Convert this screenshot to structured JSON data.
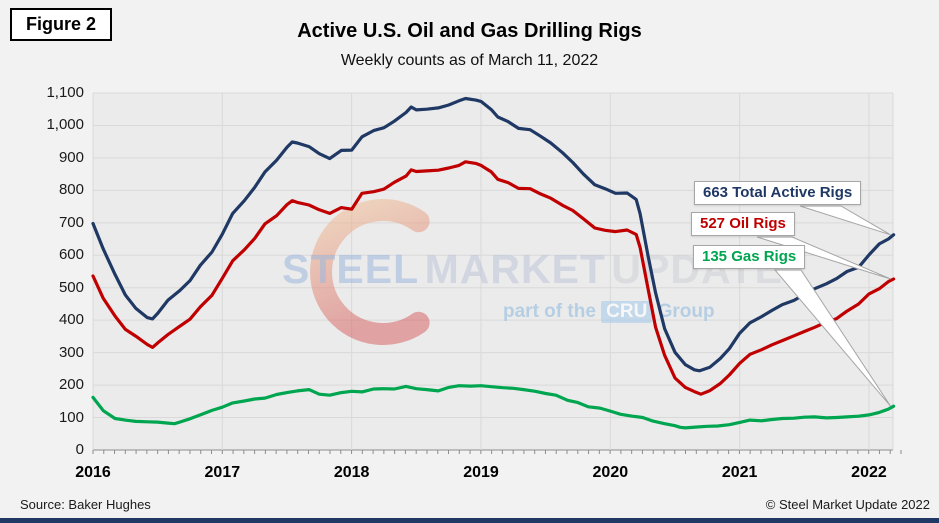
{
  "figure_label": "Figure 2",
  "footer": {
    "source": "Source: Baker Hughes",
    "copyright": "© Steel Market Update 2022"
  },
  "watermark": {
    "word1": "STEEL",
    "word2": "MARKET",
    "word3": "UPDATE",
    "sub_prefix": "part of the",
    "sub_badge": "CRU",
    "sub_suffix": "Group"
  },
  "colors": {
    "total": "#1f3864",
    "oil": "#c00000",
    "gas": "#00a550",
    "plot_bg": "#ebebeb",
    "gridline": "#d9d9d9",
    "axis": "#8c8c8c",
    "page_bg": "#f2f2f2",
    "callout_border": "#a6a6a6",
    "footer_bar": "#1f3864"
  },
  "chart_data": {
    "type": "line",
    "title": "Active U.S. Oil and Gas Drilling Rigs",
    "subtitle": "Weekly counts as of March 11, 2022",
    "xlabel": "",
    "ylabel": "",
    "grid": true,
    "legend_position": "callouts-right",
    "x_axis": {
      "range": [
        2016.0,
        2022.19
      ],
      "tick_values": [
        2016,
        2017,
        2018,
        2019,
        2020,
        2021,
        2022
      ],
      "tick_labels": [
        "2016",
        "2017",
        "2018",
        "2019",
        "2020",
        "2021",
        "2022"
      ],
      "minor_tick_interval_years": 0.0833
    },
    "y_axis": {
      "range": [
        0,
        1100
      ],
      "tick_values": [
        0,
        100,
        200,
        300,
        400,
        500,
        600,
        700,
        800,
        900,
        1000,
        1100
      ],
      "tick_labels": [
        "0",
        "100",
        "200",
        "300",
        "400",
        "500",
        "600",
        "700",
        "800",
        "900",
        "1,000",
        "1,100"
      ]
    },
    "annotations": [
      {
        "text": "663 Total Active Rigs",
        "color": "#1f3864",
        "value": 663
      },
      {
        "text": "527 Oil Rigs",
        "color": "#c00000",
        "value": 527
      },
      {
        "text": "135 Gas Rigs",
        "color": "#00a550",
        "value": 135
      }
    ],
    "series": [
      {
        "name": "Total Active Rigs",
        "color": "#1f3864",
        "latest_value": 663,
        "points": [
          [
            2016.0,
            698
          ],
          [
            2016.08,
            619
          ],
          [
            2016.17,
            541
          ],
          [
            2016.25,
            478
          ],
          [
            2016.33,
            437
          ],
          [
            2016.42,
            408
          ],
          [
            2016.46,
            404
          ],
          [
            2016.5,
            421
          ],
          [
            2016.58,
            462
          ],
          [
            2016.67,
            491
          ],
          [
            2016.75,
            522
          ],
          [
            2016.83,
            569
          ],
          [
            2016.92,
            610
          ],
          [
            2017.0,
            665
          ],
          [
            2017.08,
            729
          ],
          [
            2017.17,
            768
          ],
          [
            2017.25,
            809
          ],
          [
            2017.33,
            857
          ],
          [
            2017.42,
            893
          ],
          [
            2017.5,
            933
          ],
          [
            2017.54,
            949
          ],
          [
            2017.58,
            946
          ],
          [
            2017.67,
            935
          ],
          [
            2017.75,
            913
          ],
          [
            2017.83,
            898
          ],
          [
            2017.92,
            923
          ],
          [
            2018.0,
            924
          ],
          [
            2018.08,
            965
          ],
          [
            2018.17,
            984
          ],
          [
            2018.25,
            993
          ],
          [
            2018.33,
            1013
          ],
          [
            2018.42,
            1040
          ],
          [
            2018.46,
            1057
          ],
          [
            2018.5,
            1048
          ],
          [
            2018.58,
            1050
          ],
          [
            2018.67,
            1054
          ],
          [
            2018.75,
            1063
          ],
          [
            2018.83,
            1076
          ],
          [
            2018.88,
            1083
          ],
          [
            2018.96,
            1078
          ],
          [
            2019.0,
            1074
          ],
          [
            2019.08,
            1049
          ],
          [
            2019.13,
            1026
          ],
          [
            2019.21,
            1012
          ],
          [
            2019.29,
            991
          ],
          [
            2019.38,
            987
          ],
          [
            2019.46,
            967
          ],
          [
            2019.54,
            946
          ],
          [
            2019.63,
            916
          ],
          [
            2019.71,
            886
          ],
          [
            2019.79,
            851
          ],
          [
            2019.88,
            817
          ],
          [
            2019.96,
            805
          ],
          [
            2020.04,
            791
          ],
          [
            2020.13,
            792
          ],
          [
            2020.2,
            772
          ],
          [
            2020.23,
            728
          ],
          [
            2020.29,
            602
          ],
          [
            2020.35,
            484
          ],
          [
            2020.42,
            374
          ],
          [
            2020.5,
            301
          ],
          [
            2020.58,
            263
          ],
          [
            2020.65,
            247
          ],
          [
            2020.69,
            244
          ],
          [
            2020.77,
            255
          ],
          [
            2020.85,
            282
          ],
          [
            2020.92,
            312
          ],
          [
            2021.0,
            360
          ],
          [
            2021.08,
            392
          ],
          [
            2021.17,
            411
          ],
          [
            2021.25,
            430
          ],
          [
            2021.33,
            448
          ],
          [
            2021.42,
            461
          ],
          [
            2021.5,
            479
          ],
          [
            2021.58,
            497
          ],
          [
            2021.67,
            512
          ],
          [
            2021.75,
            528
          ],
          [
            2021.83,
            550
          ],
          [
            2021.92,
            563
          ],
          [
            2022.0,
            601
          ],
          [
            2022.08,
            635
          ],
          [
            2022.15,
            650
          ],
          [
            2022.19,
            663
          ]
        ]
      },
      {
        "name": "Oil Rigs",
        "color": "#c00000",
        "latest_value": 527,
        "points": [
          [
            2016.0,
            536
          ],
          [
            2016.08,
            467
          ],
          [
            2016.17,
            413
          ],
          [
            2016.25,
            372
          ],
          [
            2016.33,
            351
          ],
          [
            2016.42,
            325
          ],
          [
            2016.46,
            316
          ],
          [
            2016.5,
            330
          ],
          [
            2016.58,
            356
          ],
          [
            2016.67,
            381
          ],
          [
            2016.75,
            403
          ],
          [
            2016.83,
            441
          ],
          [
            2016.92,
            477
          ],
          [
            2017.0,
            529
          ],
          [
            2017.08,
            583
          ],
          [
            2017.17,
            617
          ],
          [
            2017.25,
            652
          ],
          [
            2017.33,
            697
          ],
          [
            2017.42,
            722
          ],
          [
            2017.5,
            756
          ],
          [
            2017.54,
            768
          ],
          [
            2017.58,
            763
          ],
          [
            2017.67,
            755
          ],
          [
            2017.75,
            740
          ],
          [
            2017.83,
            729
          ],
          [
            2017.92,
            747
          ],
          [
            2018.0,
            742
          ],
          [
            2018.08,
            791
          ],
          [
            2018.17,
            796
          ],
          [
            2018.25,
            804
          ],
          [
            2018.33,
            825
          ],
          [
            2018.42,
            844
          ],
          [
            2018.46,
            863
          ],
          [
            2018.5,
            858
          ],
          [
            2018.58,
            860
          ],
          [
            2018.67,
            862
          ],
          [
            2018.75,
            869
          ],
          [
            2018.83,
            877
          ],
          [
            2018.88,
            888
          ],
          [
            2018.96,
            883
          ],
          [
            2019.0,
            877
          ],
          [
            2019.08,
            857
          ],
          [
            2019.13,
            834
          ],
          [
            2019.21,
            824
          ],
          [
            2019.29,
            806
          ],
          [
            2019.38,
            805
          ],
          [
            2019.46,
            789
          ],
          [
            2019.54,
            776
          ],
          [
            2019.63,
            754
          ],
          [
            2019.71,
            738
          ],
          [
            2019.79,
            713
          ],
          [
            2019.88,
            684
          ],
          [
            2019.96,
            677
          ],
          [
            2020.04,
            673
          ],
          [
            2020.13,
            678
          ],
          [
            2020.2,
            664
          ],
          [
            2020.23,
            624
          ],
          [
            2020.29,
            501
          ],
          [
            2020.35,
            378
          ],
          [
            2020.42,
            292
          ],
          [
            2020.5,
            222
          ],
          [
            2020.58,
            193
          ],
          [
            2020.65,
            180
          ],
          [
            2020.7,
            172
          ],
          [
            2020.77,
            183
          ],
          [
            2020.85,
            205
          ],
          [
            2020.92,
            231
          ],
          [
            2021.0,
            267
          ],
          [
            2021.08,
            295
          ],
          [
            2021.17,
            309
          ],
          [
            2021.25,
            324
          ],
          [
            2021.33,
            337
          ],
          [
            2021.42,
            352
          ],
          [
            2021.5,
            365
          ],
          [
            2021.58,
            378
          ],
          [
            2021.67,
            394
          ],
          [
            2021.75,
            405
          ],
          [
            2021.83,
            428
          ],
          [
            2021.92,
            450
          ],
          [
            2022.0,
            481
          ],
          [
            2022.08,
            497
          ],
          [
            2022.15,
            519
          ],
          [
            2022.19,
            527
          ]
        ]
      },
      {
        "name": "Gas Rigs",
        "color": "#00a550",
        "latest_value": 135,
        "points": [
          [
            2016.0,
            162
          ],
          [
            2016.08,
            121
          ],
          [
            2016.17,
            97
          ],
          [
            2016.25,
            92
          ],
          [
            2016.33,
            88
          ],
          [
            2016.42,
            87
          ],
          [
            2016.5,
            86
          ],
          [
            2016.58,
            83
          ],
          [
            2016.63,
            81
          ],
          [
            2016.67,
            86
          ],
          [
            2016.75,
            96
          ],
          [
            2016.83,
            108
          ],
          [
            2016.92,
            122
          ],
          [
            2017.0,
            132
          ],
          [
            2017.08,
            145
          ],
          [
            2017.17,
            151
          ],
          [
            2017.25,
            157
          ],
          [
            2017.33,
            160
          ],
          [
            2017.42,
            171
          ],
          [
            2017.5,
            177
          ],
          [
            2017.58,
            182
          ],
          [
            2017.67,
            186
          ],
          [
            2017.75,
            172
          ],
          [
            2017.83,
            169
          ],
          [
            2017.92,
            177
          ],
          [
            2018.0,
            181
          ],
          [
            2018.08,
            179
          ],
          [
            2018.17,
            188
          ],
          [
            2018.25,
            189
          ],
          [
            2018.33,
            188
          ],
          [
            2018.42,
            196
          ],
          [
            2018.5,
            189
          ],
          [
            2018.58,
            186
          ],
          [
            2018.67,
            182
          ],
          [
            2018.75,
            193
          ],
          [
            2018.83,
            198
          ],
          [
            2018.92,
            197
          ],
          [
            2019.0,
            198
          ],
          [
            2019.08,
            195
          ],
          [
            2019.17,
            192
          ],
          [
            2019.25,
            190
          ],
          [
            2019.33,
            186
          ],
          [
            2019.42,
            181
          ],
          [
            2019.5,
            174
          ],
          [
            2019.58,
            169
          ],
          [
            2019.67,
            153
          ],
          [
            2019.75,
            146
          ],
          [
            2019.83,
            133
          ],
          [
            2019.92,
            129
          ],
          [
            2020.0,
            120
          ],
          [
            2020.08,
            110
          ],
          [
            2020.17,
            104
          ],
          [
            2020.25,
            100
          ],
          [
            2020.33,
            89
          ],
          [
            2020.42,
            81
          ],
          [
            2020.5,
            75
          ],
          [
            2020.54,
            70
          ],
          [
            2020.58,
            68
          ],
          [
            2020.67,
            71
          ],
          [
            2020.75,
            73
          ],
          [
            2020.83,
            74
          ],
          [
            2020.92,
            78
          ],
          [
            2021.0,
            85
          ],
          [
            2021.08,
            92
          ],
          [
            2021.17,
            90
          ],
          [
            2021.25,
            94
          ],
          [
            2021.33,
            97
          ],
          [
            2021.42,
            98
          ],
          [
            2021.5,
            101
          ],
          [
            2021.58,
            102
          ],
          [
            2021.67,
            99
          ],
          [
            2021.75,
            100
          ],
          [
            2021.83,
            102
          ],
          [
            2021.92,
            104
          ],
          [
            2022.0,
            108
          ],
          [
            2022.08,
            116
          ],
          [
            2022.15,
            126
          ],
          [
            2022.19,
            135
          ]
        ]
      }
    ]
  }
}
